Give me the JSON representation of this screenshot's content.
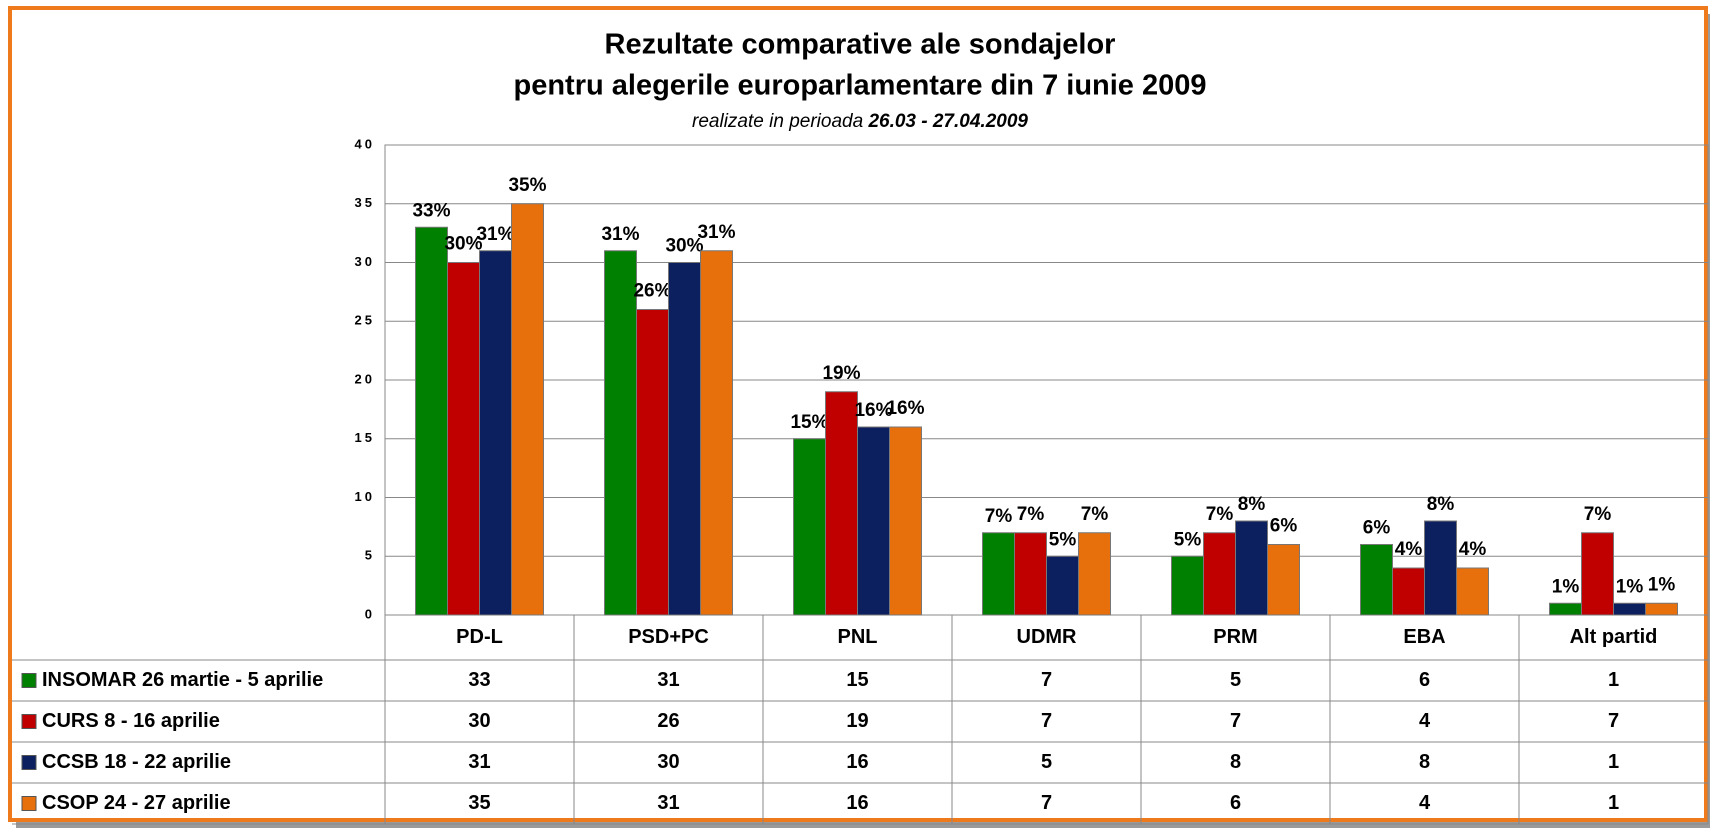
{
  "chart_data": {
    "type": "bar",
    "title": "Rezultate comparative ale sondajelor",
    "title_line2": "pentru alegerile europarlamentare din 7 iunie 2009",
    "subtitle": "realizate in perioada",
    "subtitle_period": "26.03 - 27.04.2009",
    "categories": [
      "PD-L",
      "PSD+PC",
      "PNL",
      "UDMR",
      "PRM",
      "EBA",
      "Alt partid"
    ],
    "ylim": [
      0,
      40
    ],
    "yticks": [
      0,
      5,
      10,
      15,
      20,
      25,
      30,
      35,
      40
    ],
    "grid": true,
    "series": [
      {
        "name": "INSOMAR 26 martie - 5 aprilie",
        "color": "#008000",
        "values": [
          33,
          31,
          15,
          7,
          5,
          6,
          1
        ],
        "value_labels": [
          "33%",
          "31%",
          "15%",
          "7%",
          "5%",
          "6%",
          "1%"
        ]
      },
      {
        "name": "CURS 8 - 16 aprilie",
        "color": "#c00000",
        "values": [
          30,
          26,
          19,
          7,
          7,
          4,
          7
        ],
        "value_labels": [
          "30%",
          "26%",
          "19%",
          "7%",
          "7%",
          "4%",
          "7%"
        ]
      },
      {
        "name": "CCSB 18 - 22 aprilie",
        "color": "#0c1f5e",
        "values": [
          31,
          30,
          16,
          5,
          8,
          8,
          1
        ],
        "value_labels": [
          "31%",
          "30%",
          "16%",
          "5%",
          "8%",
          "8%",
          "1%"
        ]
      },
      {
        "name": "CSOP 24 - 27 aprilie",
        "color": "#e8700c",
        "values": [
          35,
          31,
          16,
          7,
          6,
          4,
          1
        ],
        "value_labels": [
          "35%",
          "31%",
          "16%",
          "7%",
          "6%",
          "4%",
          "1%"
        ]
      }
    ]
  }
}
